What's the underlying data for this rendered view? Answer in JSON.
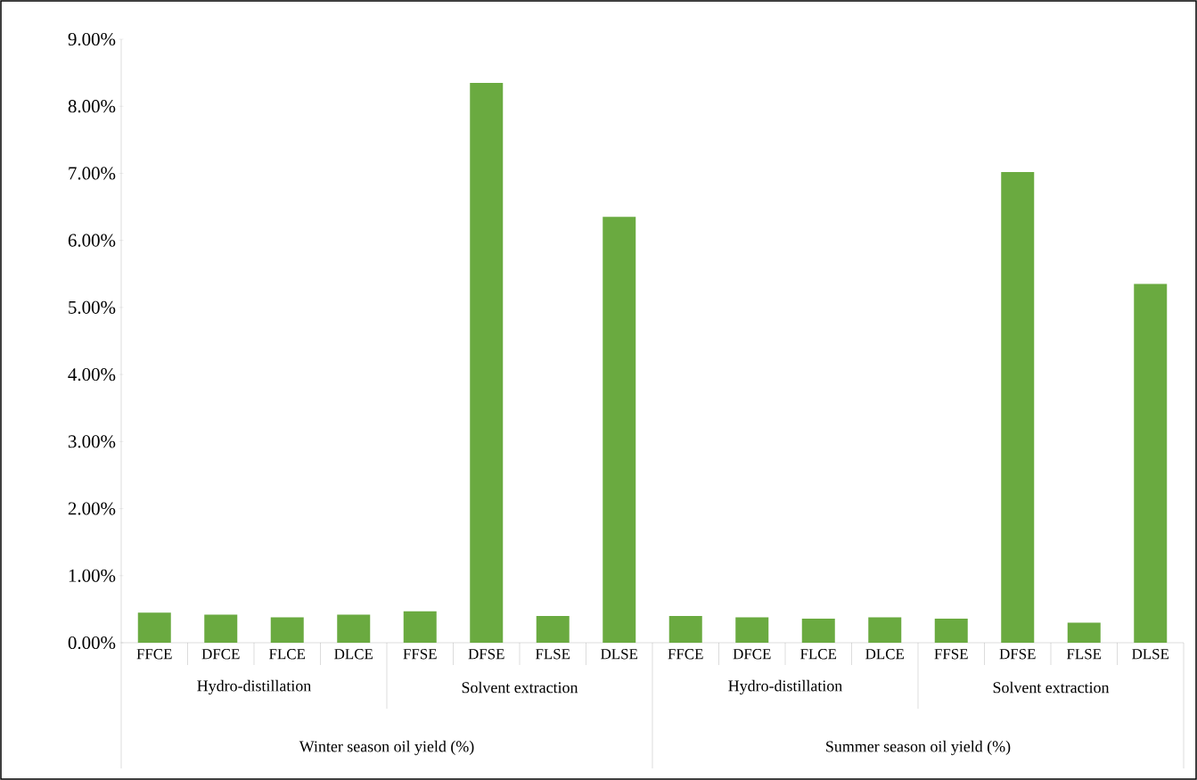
{
  "chart_data": {
    "type": "bar",
    "categories": [
      "FFCE",
      "DFCE",
      "FLCE",
      "DLCE",
      "FFSE",
      "DFSE",
      "FLSE",
      "DLSE",
      "FFCE",
      "DFCE",
      "FLCE",
      "DLCE",
      "FFSE",
      "DFSE",
      "FLSE",
      "DLSE"
    ],
    "values": [
      0.45,
      0.42,
      0.38,
      0.42,
      0.47,
      8.35,
      0.4,
      6.35,
      0.4,
      0.38,
      0.36,
      0.38,
      0.36,
      7.02,
      0.3,
      5.35
    ],
    "color": "#6aaa40",
    "ylim": [
      0,
      9
    ],
    "yticks": [
      {
        "value": 0,
        "label": "0.00%"
      },
      {
        "value": 1,
        "label": "1.00%"
      },
      {
        "value": 2,
        "label": "2.00%"
      },
      {
        "value": 3,
        "label": "3.00%"
      },
      {
        "value": 4,
        "label": "4.00%"
      },
      {
        "value": 5,
        "label": "5.00%"
      },
      {
        "value": 6,
        "label": "6.00%"
      },
      {
        "value": 7,
        "label": "7.00%"
      },
      {
        "value": 8,
        "label": "8.00%"
      },
      {
        "value": 9,
        "label": "9.00%"
      }
    ],
    "annotations": [
      "Hydro-distillation",
      "Solvent extraction",
      "Hydro-distillation",
      "Solvent extraction",
      "Winter season oil yield (%)",
      "Summer season oil yield (%)"
    ],
    "grid": false
  }
}
